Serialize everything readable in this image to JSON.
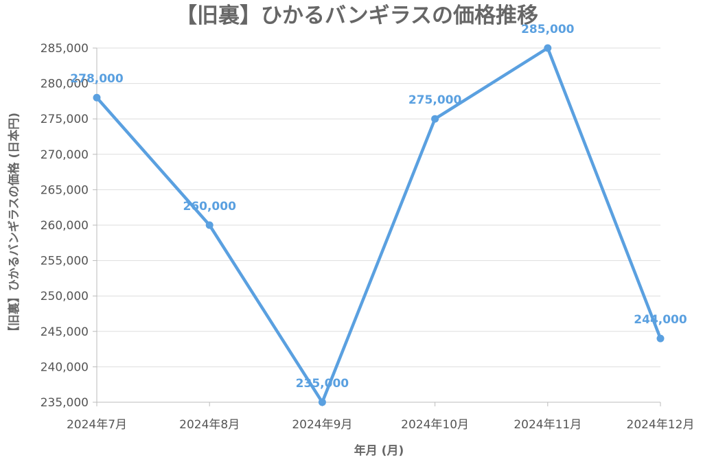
{
  "chart_data": {
    "type": "line",
    "title": "【旧裏】ひかるバンギラスの価格推移",
    "xlabel": "年月 (月)",
    "ylabel": "【旧裏】ひかるバンギラスの価格 (日本円)",
    "categories": [
      "2024年7月",
      "2024年8月",
      "2024年9月",
      "2024年10月",
      "2024年11月",
      "2024年12月"
    ],
    "series": [
      {
        "values": [
          278000,
          260000,
          235000,
          275000,
          285000,
          244000
        ]
      }
    ],
    "data_labels": [
      "278,000",
      "260,000",
      "235,000",
      "275,000",
      "285,000",
      "244,000"
    ],
    "yticks": [
      "235,000",
      "240,000",
      "245,000",
      "250,000",
      "255,000",
      "260,000",
      "265,000",
      "270,000",
      "275,000",
      "280,000",
      "285,000"
    ],
    "ylim": [
      235000,
      285000
    ],
    "grid": true,
    "color": "#5aa0e0"
  }
}
